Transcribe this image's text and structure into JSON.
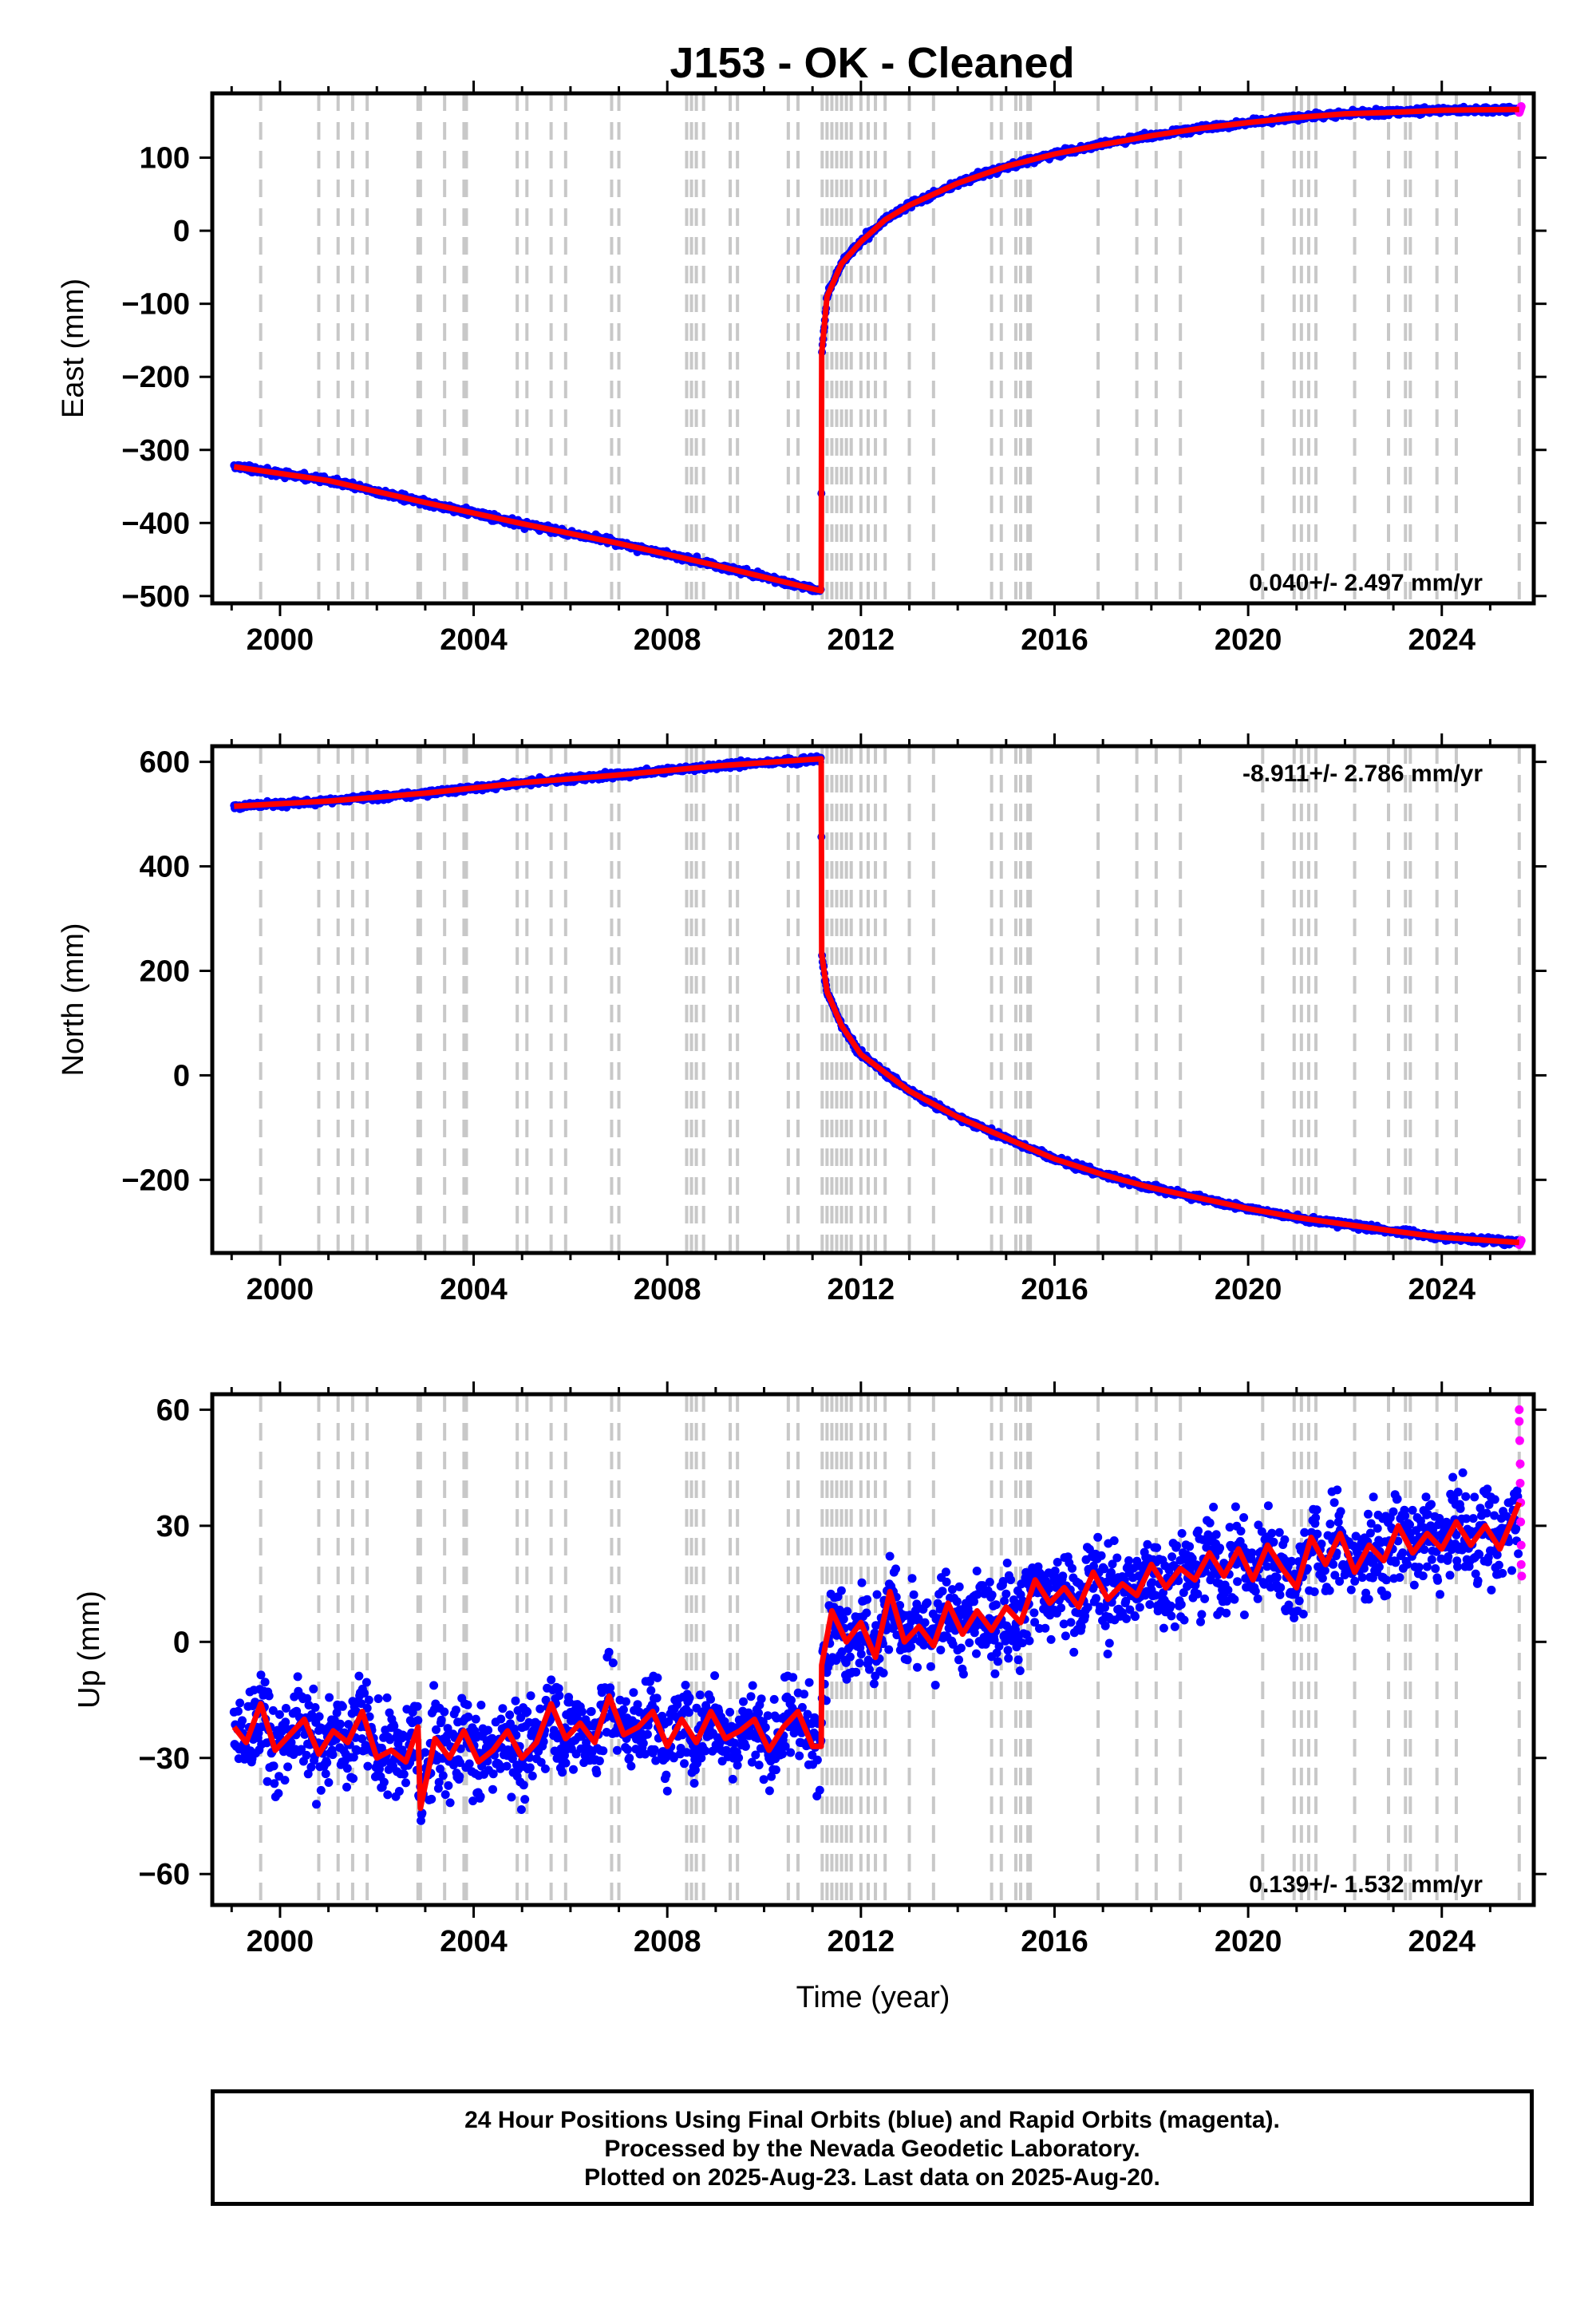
{
  "title": "J153  - OK - Cleaned",
  "footer": {
    "line1": "24 Hour Positions Using Final Orbits (blue) and Rapid Orbits (magenta).",
    "line2": "Processed by the Nevada Geodetic Laboratory.",
    "line3": "Plotted on 2025-Aug-23. Last data on 2025-Aug-20."
  },
  "colors": {
    "final_orbits": "#0000ff",
    "rapid_orbits": "#ff00ff",
    "model": "#ff0000",
    "offset_lines": "#c8c8c8",
    "frame": "#000000"
  },
  "chart_data": [
    {
      "type": "scatter",
      "component": "east",
      "ylabel": "East (mm)",
      "xlabel": "",
      "xlim": [
        1998.6,
        2025.9
      ],
      "ylim": [
        -510,
        188
      ],
      "x_ticks": [
        2000,
        2004,
        2008,
        2012,
        2016,
        2020,
        2024
      ],
      "y_ticks": [
        -500,
        -400,
        -300,
        -200,
        -100,
        0,
        100
      ],
      "rate": "0.040+/- 2.497 mm/yr",
      "rate_position": "bottom-right",
      "model": {
        "x": [
          1999.05,
          2001.0,
          2003.0,
          2005.0,
          2007.0,
          2009.0,
          2011.18,
          2011.19,
          2011.3,
          2011.6,
          2012.0,
          2012.5,
          2013.0,
          2014.0,
          2015.0,
          2016.0,
          2017.0,
          2018.0,
          2019.0,
          2020.0,
          2021.0,
          2022.0,
          2023.0,
          2024.0,
          2025.6
        ],
        "y": [
          -323,
          -342,
          -372,
          -401,
          -428,
          -458,
          -493,
          -168,
          -90,
          -45,
          -15,
          15,
          35,
          65,
          88,
          105,
          118,
          130,
          140,
          148,
          155,
          160,
          162,
          165,
          166
        ]
      },
      "scatter_spread": 5,
      "offsets": [
        1999.6,
        2000.8,
        2001.2,
        2001.5,
        2001.8,
        2002.85,
        2002.9,
        2003.4,
        2003.8,
        2003.85,
        2004.9,
        2005.1,
        2005.6,
        2005.9,
        2006.85,
        2007.0,
        2008.4,
        2008.5,
        2008.6,
        2008.75,
        2009.3,
        2009.45,
        2010.5,
        2010.7,
        2011.2,
        2011.3,
        2011.4,
        2011.5,
        2011.6,
        2011.7,
        2011.8,
        2012.0,
        2012.15,
        2012.3,
        2012.5,
        2013.0,
        2013.5,
        2014.7,
        2014.9,
        2015.2,
        2015.3,
        2015.45,
        2015.5,
        2016.9,
        2017.7,
        2018.1,
        2018.6,
        2020.3,
        2020.95,
        2021.1,
        2021.25,
        2021.4,
        2022.2,
        2022.9,
        2023.25,
        2023.35,
        2023.9,
        2024.3,
        2025.6
      ]
    },
    {
      "type": "scatter",
      "component": "north",
      "ylabel": "North (mm)",
      "xlabel": "",
      "xlim": [
        1998.6,
        2025.9
      ],
      "ylim": [
        -340,
        630
      ],
      "x_ticks": [
        2000,
        2004,
        2008,
        2012,
        2016,
        2020,
        2024
      ],
      "y_ticks": [
        -200,
        0,
        200,
        400,
        600
      ],
      "rate": "-8.911+/- 2.786 mm/yr",
      "rate_position": "top-right",
      "model": {
        "x": [
          1999.05,
          2001.0,
          2003.0,
          2005.0,
          2007.0,
          2009.0,
          2011.18,
          2011.19,
          2011.3,
          2011.6,
          2012.0,
          2012.5,
          2013.0,
          2014.0,
          2015.0,
          2016.0,
          2017.0,
          2018.0,
          2019.0,
          2020.0,
          2021.0,
          2022.0,
          2023.0,
          2024.0,
          2025.6
        ],
        "y": [
          515,
          525,
          540,
          560,
          575,
          592,
          606,
          232,
          160,
          95,
          40,
          5,
          -30,
          -80,
          -120,
          -160,
          -190,
          -215,
          -235,
          -255,
          -272,
          -285,
          -298,
          -310,
          -320
        ]
      },
      "scatter_spread": 7,
      "offsets": [
        1999.6,
        2000.8,
        2001.2,
        2001.5,
        2001.8,
        2002.85,
        2002.9,
        2003.4,
        2003.8,
        2003.85,
        2004.9,
        2005.1,
        2005.6,
        2005.9,
        2006.85,
        2007.0,
        2008.4,
        2008.5,
        2008.6,
        2008.75,
        2009.3,
        2009.45,
        2010.5,
        2010.7,
        2011.2,
        2011.3,
        2011.4,
        2011.5,
        2011.6,
        2011.7,
        2011.8,
        2012.0,
        2012.15,
        2012.3,
        2012.5,
        2013.0,
        2013.5,
        2014.7,
        2014.9,
        2015.2,
        2015.3,
        2015.45,
        2015.5,
        2016.9,
        2017.7,
        2018.1,
        2018.6,
        2020.3,
        2020.95,
        2021.1,
        2021.25,
        2021.4,
        2022.2,
        2022.9,
        2023.25,
        2023.35,
        2023.9,
        2024.3,
        2025.6
      ]
    },
    {
      "type": "scatter",
      "component": "up",
      "ylabel": "Up (mm)",
      "xlabel": "Time (year)",
      "xlim": [
        1998.6,
        2025.9
      ],
      "ylim": [
        -68,
        64
      ],
      "x_ticks": [
        2000,
        2004,
        2008,
        2012,
        2016,
        2020,
        2024
      ],
      "y_ticks": [
        -60,
        -30,
        0,
        30,
        60
      ],
      "rate": "0.139+/- 1.532 mm/yr",
      "rate_position": "bottom-right",
      "model": {
        "x": [
          1999.05,
          1999.3,
          1999.6,
          1999.9,
          2000.2,
          2000.5,
          2000.8,
          2001.1,
          2001.4,
          2001.7,
          2002.0,
          2002.3,
          2002.6,
          2002.85,
          2002.9,
          2003.2,
          2003.5,
          2003.8,
          2004.1,
          2004.4,
          2004.7,
          2005.0,
          2005.3,
          2005.6,
          2005.9,
          2006.2,
          2006.5,
          2006.8,
          2007.1,
          2007.4,
          2007.7,
          2008.0,
          2008.3,
          2008.6,
          2008.9,
          2009.2,
          2009.5,
          2009.8,
          2010.1,
          2010.4,
          2010.7,
          2011.0,
          2011.18,
          2011.19,
          2011.4,
          2011.7,
          2012.0,
          2012.3,
          2012.6,
          2012.9,
          2013.2,
          2013.5,
          2013.8,
          2014.1,
          2014.4,
          2014.7,
          2015.0,
          2015.3,
          2015.6,
          2015.9,
          2016.2,
          2016.5,
          2016.8,
          2017.1,
          2017.4,
          2017.7,
          2018.0,
          2018.3,
          2018.6,
          2018.9,
          2019.2,
          2019.5,
          2019.8,
          2020.1,
          2020.4,
          2020.7,
          2021.0,
          2021.3,
          2021.6,
          2021.9,
          2022.2,
          2022.5,
          2022.8,
          2023.1,
          2023.4,
          2023.7,
          2024.0,
          2024.3,
          2024.6,
          2024.9,
          2025.2,
          2025.6
        ],
        "y": [
          -22,
          -26,
          -16,
          -28,
          -24,
          -20,
          -29,
          -23,
          -26,
          -18,
          -30,
          -28,
          -31,
          -22,
          -43,
          -25,
          -30,
          -23,
          -31,
          -28,
          -23,
          -30,
          -26,
          -16,
          -25,
          -21,
          -26,
          -14,
          -24,
          -22,
          -18,
          -27,
          -20,
          -26,
          -18,
          -25,
          -23,
          -20,
          -28,
          -22,
          -18,
          -27,
          -27,
          -6,
          8,
          0,
          5,
          -4,
          13,
          0,
          4,
          -1,
          10,
          2,
          8,
          3,
          9,
          5,
          16,
          10,
          14,
          9,
          18,
          11,
          15,
          12,
          20,
          14,
          19,
          16,
          23,
          17,
          24,
          16,
          25,
          19,
          14,
          27,
          20,
          28,
          18,
          25,
          21,
          30,
          23,
          28,
          24,
          31,
          25,
          30,
          24,
          36
        ]
      },
      "scatter_spread": 8,
      "rapid": {
        "x": [
          2025.6,
          2025.6,
          2025.61,
          2025.62,
          2025.62,
          2025.63,
          2025.63,
          2025.64,
          2025.64,
          2025.65
        ],
        "y": [
          60,
          57,
          52,
          46,
          41,
          36,
          31,
          25,
          20,
          17
        ]
      },
      "offsets": [
        1999.6,
        2000.8,
        2001.2,
        2001.5,
        2001.8,
        2002.85,
        2002.9,
        2003.4,
        2003.8,
        2003.85,
        2004.9,
        2005.1,
        2005.6,
        2005.9,
        2006.85,
        2007.0,
        2008.4,
        2008.5,
        2008.6,
        2008.75,
        2009.3,
        2009.45,
        2010.5,
        2010.7,
        2011.2,
        2011.3,
        2011.4,
        2011.5,
        2011.6,
        2011.7,
        2011.8,
        2012.0,
        2012.15,
        2012.3,
        2012.5,
        2013.0,
        2013.5,
        2014.7,
        2014.9,
        2015.2,
        2015.3,
        2015.45,
        2015.5,
        2016.9,
        2017.7,
        2018.1,
        2018.6,
        2020.3,
        2020.95,
        2021.1,
        2021.25,
        2021.4,
        2022.2,
        2022.9,
        2023.25,
        2023.35,
        2023.9,
        2024.3,
        2025.6
      ]
    }
  ]
}
